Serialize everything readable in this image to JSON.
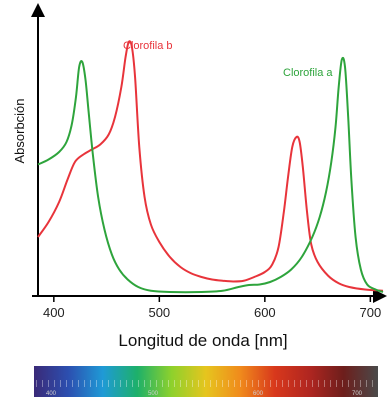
{
  "chart_data": {
    "type": "line",
    "xlabel": "Longitud de onda [nm]",
    "ylabel": "Absorbción",
    "xlim": [
      385,
      712
    ],
    "ylim": [
      0,
      1.0
    ],
    "x_ticks": [
      400,
      500,
      600,
      700
    ],
    "grid": false,
    "series": [
      {
        "name": "Clorofila b",
        "color": "#e8343b",
        "points": [
          [
            385,
            0.22
          ],
          [
            395,
            0.28
          ],
          [
            405,
            0.36
          ],
          [
            413,
            0.45
          ],
          [
            420,
            0.52
          ],
          [
            428,
            0.55
          ],
          [
            436,
            0.57
          ],
          [
            444,
            0.59
          ],
          [
            452,
            0.63
          ],
          [
            458,
            0.7
          ],
          [
            464,
            0.82
          ],
          [
            468,
            0.94
          ],
          [
            471,
            1.0
          ],
          [
            474,
            0.98
          ],
          [
            477,
            0.86
          ],
          [
            481,
            0.58
          ],
          [
            486,
            0.38
          ],
          [
            492,
            0.27
          ],
          [
            500,
            0.2
          ],
          [
            510,
            0.14
          ],
          [
            520,
            0.1
          ],
          [
            530,
            0.075
          ],
          [
            540,
            0.06
          ],
          [
            550,
            0.05
          ],
          [
            560,
            0.045
          ],
          [
            570,
            0.042
          ],
          [
            580,
            0.045
          ],
          [
            590,
            0.06
          ],
          [
            600,
            0.08
          ],
          [
            607,
            0.11
          ],
          [
            613,
            0.18
          ],
          [
            618,
            0.32
          ],
          [
            622,
            0.46
          ],
          [
            626,
            0.58
          ],
          [
            630,
            0.62
          ],
          [
            633,
            0.6
          ],
          [
            636,
            0.5
          ],
          [
            640,
            0.32
          ],
          [
            644,
            0.19
          ],
          [
            650,
            0.12
          ],
          [
            660,
            0.065
          ],
          [
            670,
            0.035
          ],
          [
            680,
            0.02
          ],
          [
            695,
            0.01
          ],
          [
            712,
            0.005
          ]
        ]
      },
      {
        "name": "Clorofila a",
        "color": "#2ea43c",
        "points": [
          [
            385,
            0.51
          ],
          [
            395,
            0.53
          ],
          [
            405,
            0.56
          ],
          [
            412,
            0.6
          ],
          [
            417,
            0.67
          ],
          [
            421,
            0.78
          ],
          [
            424,
            0.9
          ],
          [
            427,
            0.92
          ],
          [
            430,
            0.85
          ],
          [
            433,
            0.72
          ],
          [
            437,
            0.55
          ],
          [
            442,
            0.38
          ],
          [
            448,
            0.25
          ],
          [
            455,
            0.15
          ],
          [
            462,
            0.09
          ],
          [
            470,
            0.05
          ],
          [
            480,
            0.02
          ],
          [
            492,
            0.005
          ],
          [
            510,
            0.0
          ],
          [
            540,
            0.0
          ],
          [
            560,
            0.005
          ],
          [
            575,
            0.02
          ],
          [
            585,
            0.028
          ],
          [
            595,
            0.03
          ],
          [
            605,
            0.04
          ],
          [
            615,
            0.06
          ],
          [
            625,
            0.09
          ],
          [
            635,
            0.14
          ],
          [
            645,
            0.22
          ],
          [
            652,
            0.3
          ],
          [
            658,
            0.4
          ],
          [
            663,
            0.52
          ],
          [
            667,
            0.66
          ],
          [
            670,
            0.82
          ],
          [
            673,
            0.93
          ],
          [
            676,
            0.9
          ],
          [
            679,
            0.7
          ],
          [
            682,
            0.45
          ],
          [
            686,
            0.22
          ],
          [
            691,
            0.09
          ],
          [
            697,
            0.03
          ],
          [
            705,
            0.01
          ],
          [
            712,
            0.0
          ]
        ]
      }
    ]
  },
  "spectrum": {
    "labels": [
      "400",
      "500",
      "600",
      "700"
    ],
    "colors": [
      "#3a2a78",
      "#2c4fb0",
      "#1f9ad6",
      "#1db06a",
      "#8ed12c",
      "#e6c51e",
      "#f08a1c",
      "#d8381c",
      "#b02620",
      "#6d1e1c",
      "#4a4a4a"
    ]
  }
}
